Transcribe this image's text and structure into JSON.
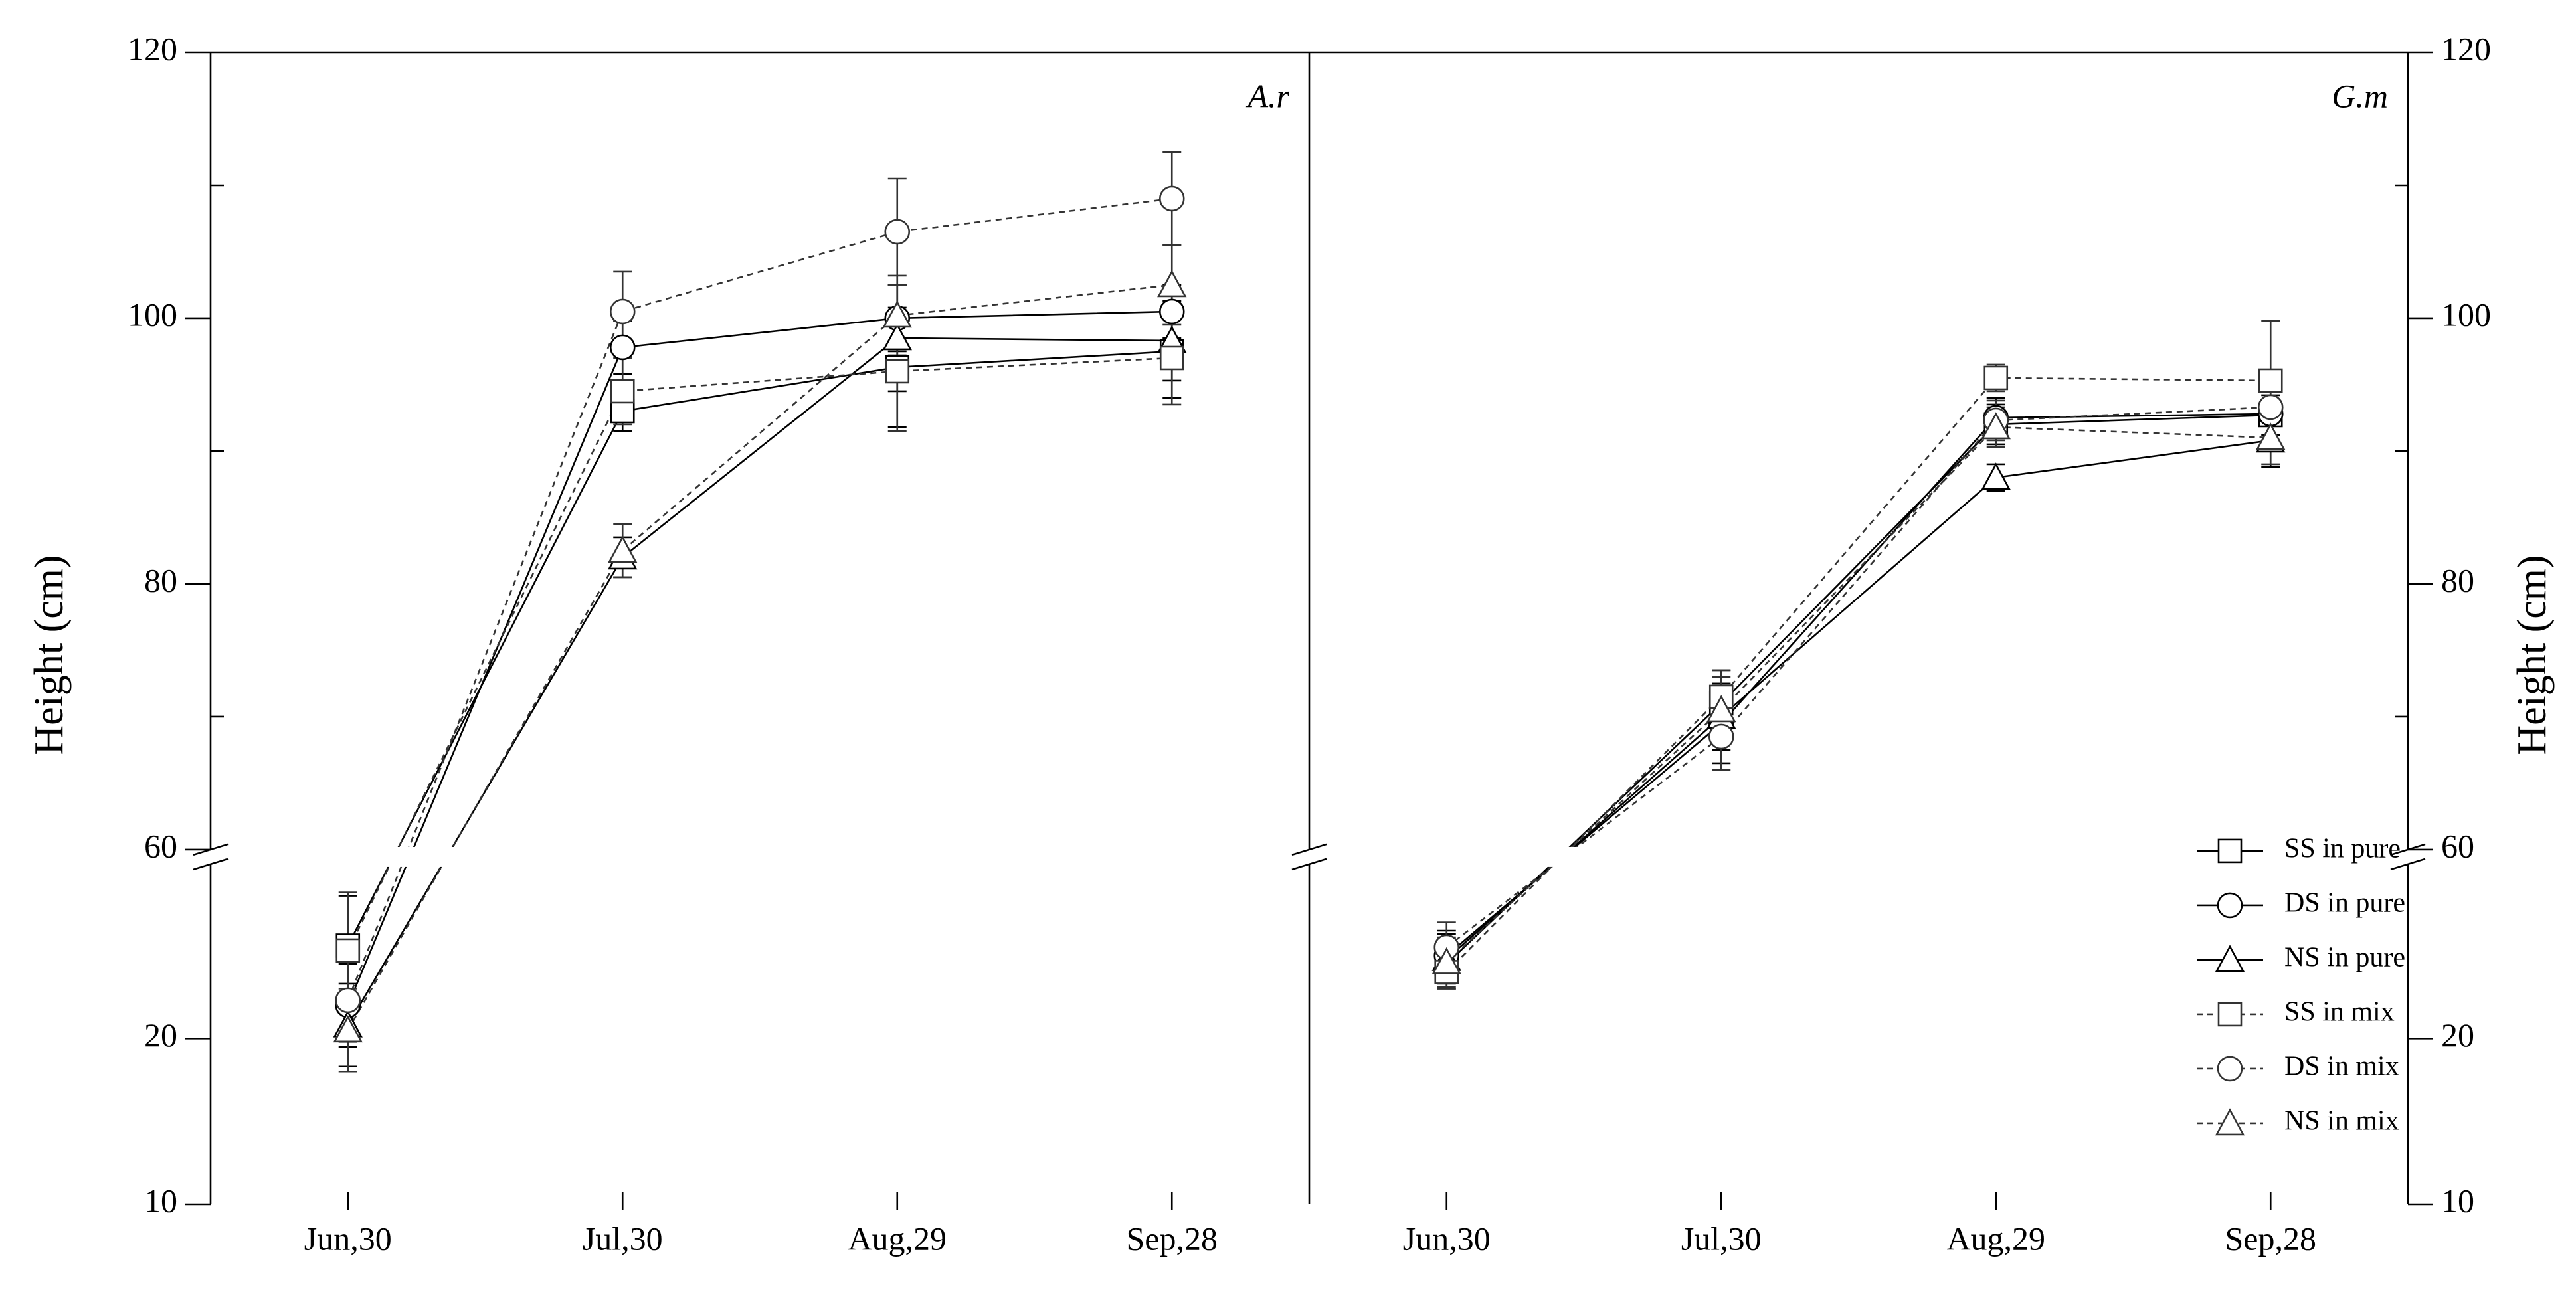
{
  "chart_data": [
    {
      "type": "line",
      "panel_label": "A.r",
      "ylabel": "Height (cm)",
      "yaxis": "left",
      "categories": [
        "Jun,30",
        "Jul,30",
        "Aug,29",
        "Sep,28"
      ],
      "ylim": [
        10,
        120
      ],
      "ybreak": [
        30,
        60
      ],
      "yticks": [
        10,
        20,
        60,
        80,
        100,
        120
      ],
      "yminor": [
        70,
        90,
        110
      ],
      "series": [
        {
          "name": "SS in pure",
          "color": "#000000",
          "linestyle": "solid",
          "marker": "square",
          "values": [
            25.6,
            93,
            96.3,
            97.5
          ],
          "errors": [
            3,
            1.5,
            4.5,
            3.5
          ]
        },
        {
          "name": "DS in pure",
          "color": "#000000",
          "linestyle": "solid",
          "marker": "circle",
          "values": [
            22,
            97.8,
            100,
            100.5
          ],
          "errors": [
            2.5,
            2,
            2.5,
            2
          ]
        },
        {
          "name": "NS in pure",
          "color": "#000000",
          "linestyle": "solid",
          "marker": "triangle",
          "values": [
            20.8,
            82,
            98.5,
            98.3
          ],
          "errors": [
            2.5,
            1.5,
            4,
            3
          ]
        },
        {
          "name": "SS in mix",
          "color": "#333333",
          "linestyle": "dashed",
          "marker": "square",
          "values": [
            25.3,
            94.5,
            96,
            97
          ],
          "errors": [
            3.5,
            2.5,
            4.5,
            3.5
          ]
        },
        {
          "name": "DS in mix",
          "color": "#333333",
          "linestyle": "dashed",
          "marker": "circle",
          "values": [
            22.3,
            100.5,
            106.5,
            109
          ],
          "errors": [
            2.5,
            3,
            4,
            3.5
          ]
        },
        {
          "name": "NS in mix",
          "color": "#333333",
          "linestyle": "dashed",
          "marker": "triangle",
          "values": [
            20.5,
            82.5,
            100.2,
            102.5
          ],
          "errors": [
            2.5,
            2,
            3,
            3
          ]
        }
      ]
    },
    {
      "type": "line",
      "panel_label": "G.m",
      "ylabel": "Height (cm)",
      "yaxis": "right",
      "legend": "lower right",
      "categories": [
        "Jun,30",
        "Jul,30",
        "Aug,29",
        "Sep,28"
      ],
      "ylim": [
        10,
        120
      ],
      "ybreak": [
        30,
        60
      ],
      "yticks": [
        10,
        20,
        60,
        80,
        100,
        120
      ],
      "yminor": [
        70,
        90,
        110
      ],
      "series": [
        {
          "name": "SS in pure",
          "color": "#000000",
          "linestyle": "solid",
          "marker": "square",
          "values": [
            24.5,
            71,
            92,
            92.7
          ],
          "errors": [
            1.5,
            2.5,
            1.5,
            1.5
          ]
        },
        {
          "name": "DS in pure",
          "color": "#000000",
          "linestyle": "solid",
          "marker": "circle",
          "values": [
            25,
            69.5,
            92.5,
            92.8
          ],
          "errors": [
            1.5,
            3,
            1.5,
            2
          ]
        },
        {
          "name": "NS in pure",
          "color": "#000000",
          "linestyle": "solid",
          "marker": "triangle",
          "values": [
            24.8,
            70,
            88,
            90.8
          ],
          "errors": [
            1.5,
            2.5,
            1,
            2
          ]
        },
        {
          "name": "SS in mix",
          "color": "#333333",
          "linestyle": "dashed",
          "marker": "square",
          "values": [
            24,
            71.5,
            95.5,
            95.3
          ],
          "errors": [
            1,
            2,
            1,
            4.5
          ]
        },
        {
          "name": "DS in mix",
          "color": "#333333",
          "linestyle": "dashed",
          "marker": "circle",
          "values": [
            25.5,
            68.5,
            92.3,
            93.3
          ],
          "errors": [
            1.5,
            2.5,
            1.5,
            2.5
          ]
        },
        {
          "name": "NS in mix",
          "color": "#333333",
          "linestyle": "dashed",
          "marker": "triangle",
          "values": [
            24.6,
            70.5,
            91.8,
            91
          ],
          "errors": [
            1.5,
            2.5,
            1.5,
            2
          ]
        }
      ]
    }
  ]
}
